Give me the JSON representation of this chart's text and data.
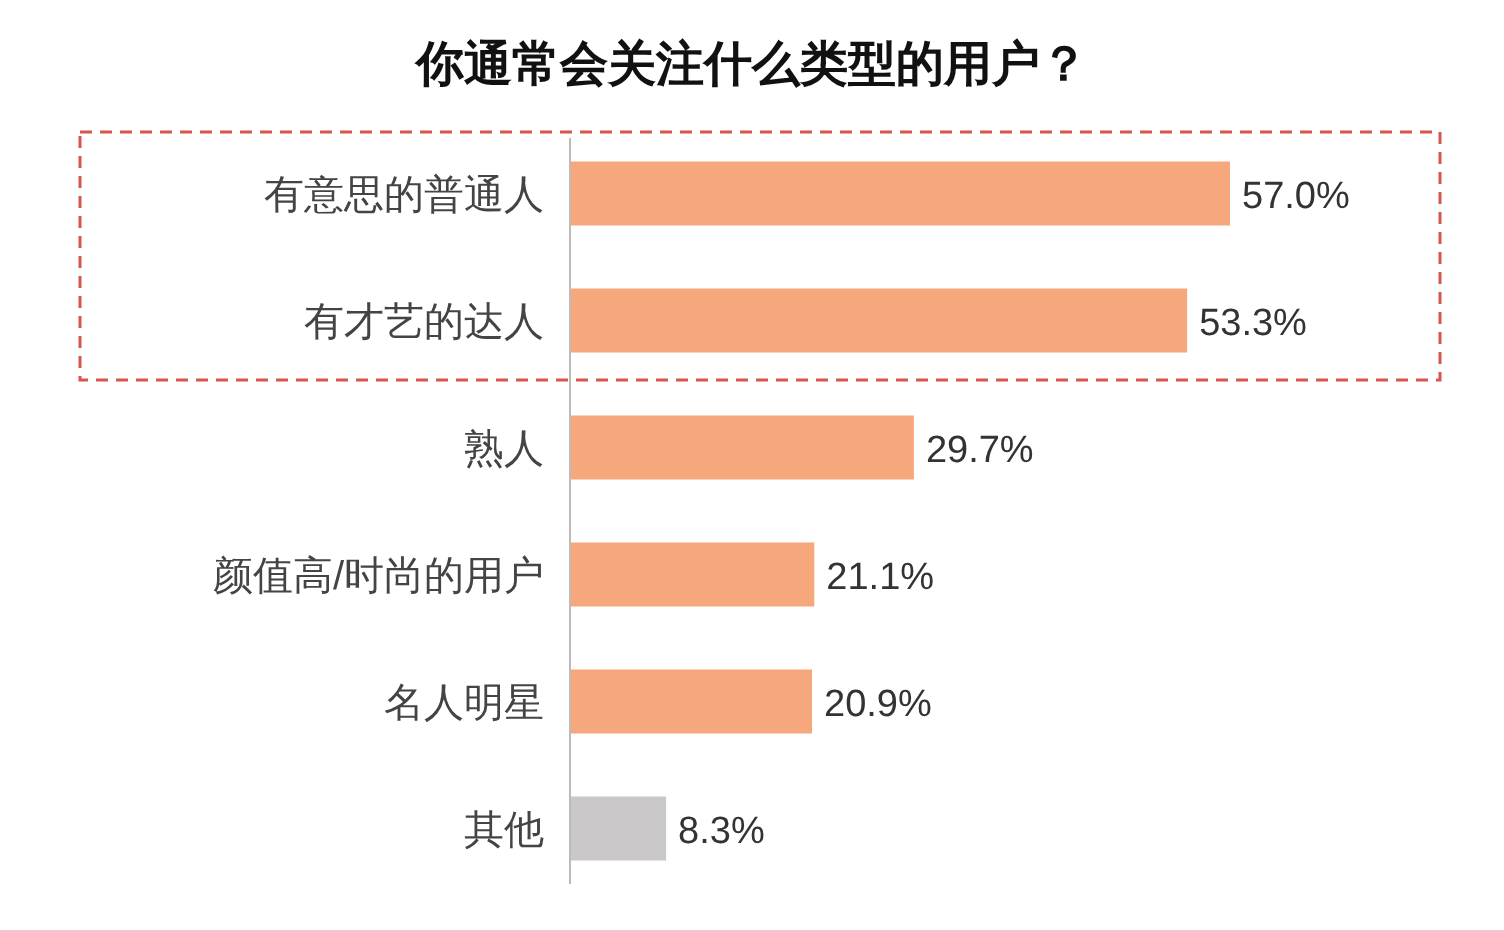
{
  "chart_data": {
    "type": "bar",
    "orientation": "horizontal",
    "title": "你通常会关注什么类型的用户？",
    "categories": [
      "有意思的普通人",
      "有才艺的达人",
      "熟人",
      "颜值高/时尚的用户",
      "名人明星",
      "其他"
    ],
    "values": [
      57.0,
      53.3,
      29.7,
      21.1,
      20.9,
      8.3
    ],
    "colors": [
      "#f7a77c",
      "#f7a77c",
      "#f7a77c",
      "#f7a77c",
      "#f7a77c",
      "#c9c7c8"
    ],
    "value_labels": [
      "57.0%",
      "53.3%",
      "29.7%",
      "21.1%",
      "20.9%",
      "8.3%"
    ]
  }
}
